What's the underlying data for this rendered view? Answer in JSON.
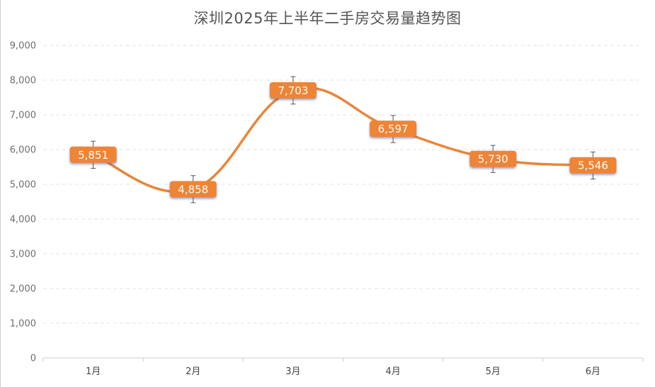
{
  "chart_data": {
    "type": "line",
    "title": "深圳2025年上半年二手房交易量趋势图",
    "xlabel": "",
    "ylabel": "",
    "categories": [
      "1月",
      "2月",
      "3月",
      "4月",
      "5月",
      "6月"
    ],
    "series": [
      {
        "values": [
          5851,
          4858,
          7703,
          6597,
          5730,
          5546
        ],
        "value_labels": [
          "5,851",
          "4,858",
          "7,703",
          "6,597",
          "5,730",
          "5,546"
        ],
        "error_low": [
          5460,
          4470,
          7310,
          6200,
          5340,
          5150
        ],
        "error_high": [
          6240,
          5250,
          8100,
          6980,
          6120,
          5930
        ]
      }
    ],
    "ylim": [
      0,
      9000
    ],
    "yticks": [
      0,
      1000,
      2000,
      3000,
      4000,
      5000,
      6000,
      7000,
      8000,
      9000
    ],
    "ytick_labels": [
      "0",
      "1,000",
      "2,000",
      "3,000",
      "4,000",
      "5,000",
      "6,000",
      "7,000",
      "8,000",
      "9,000"
    ],
    "grid": true,
    "smooth": true,
    "colors": {
      "line": "#E8863A",
      "label_bg": "#EE8434",
      "grid": "#e3e3e3",
      "axis": "#cccccc"
    }
  }
}
